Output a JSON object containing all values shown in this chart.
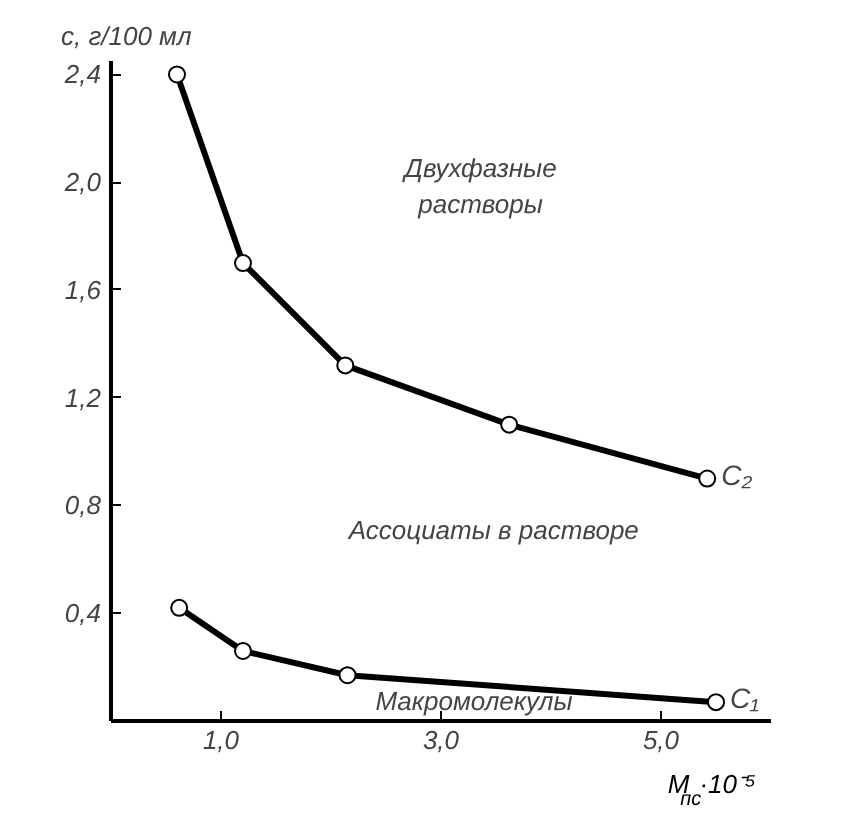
{
  "chart_data": {
    "type": "line",
    "xlabel": "M$_{пс}$·10⁻⁵",
    "ylabel": "c, г/100 мл",
    "xlim": [
      0,
      6.0
    ],
    "ylim": [
      0,
      2.45
    ],
    "xticks": [
      {
        "value": 1.0,
        "label": "1,0"
      },
      {
        "value": 3.0,
        "label": "3,0"
      },
      {
        "value": 5.0,
        "label": "5,0"
      }
    ],
    "yticks": [
      {
        "value": 0.4,
        "label": "0,4"
      },
      {
        "value": 0.8,
        "label": "0,8"
      },
      {
        "value": 1.2,
        "label": "1,2"
      },
      {
        "value": 1.6,
        "label": "1,6"
      },
      {
        "value": 2.0,
        "label": "2,0"
      },
      {
        "value": 2.4,
        "label": "2,4"
      }
    ],
    "series": [
      {
        "name": "C₂",
        "color": "#000000",
        "x": [
          0.6,
          1.2,
          2.13,
          3.62,
          5.42
        ],
        "values": [
          2.4,
          1.7,
          1.32,
          1.1,
          0.9
        ]
      },
      {
        "name": "C₁",
        "color": "#000000",
        "x": [
          0.62,
          1.2,
          2.15,
          5.5
        ],
        "values": [
          0.42,
          0.26,
          0.17,
          0.07
        ]
      }
    ],
    "annotations": [
      "Двухфазные\nрастворы",
      "Ассоциаты в растворе",
      "Макромолекулы"
    ],
    "marker": "circle",
    "line_style": "solid",
    "grid": false
  }
}
